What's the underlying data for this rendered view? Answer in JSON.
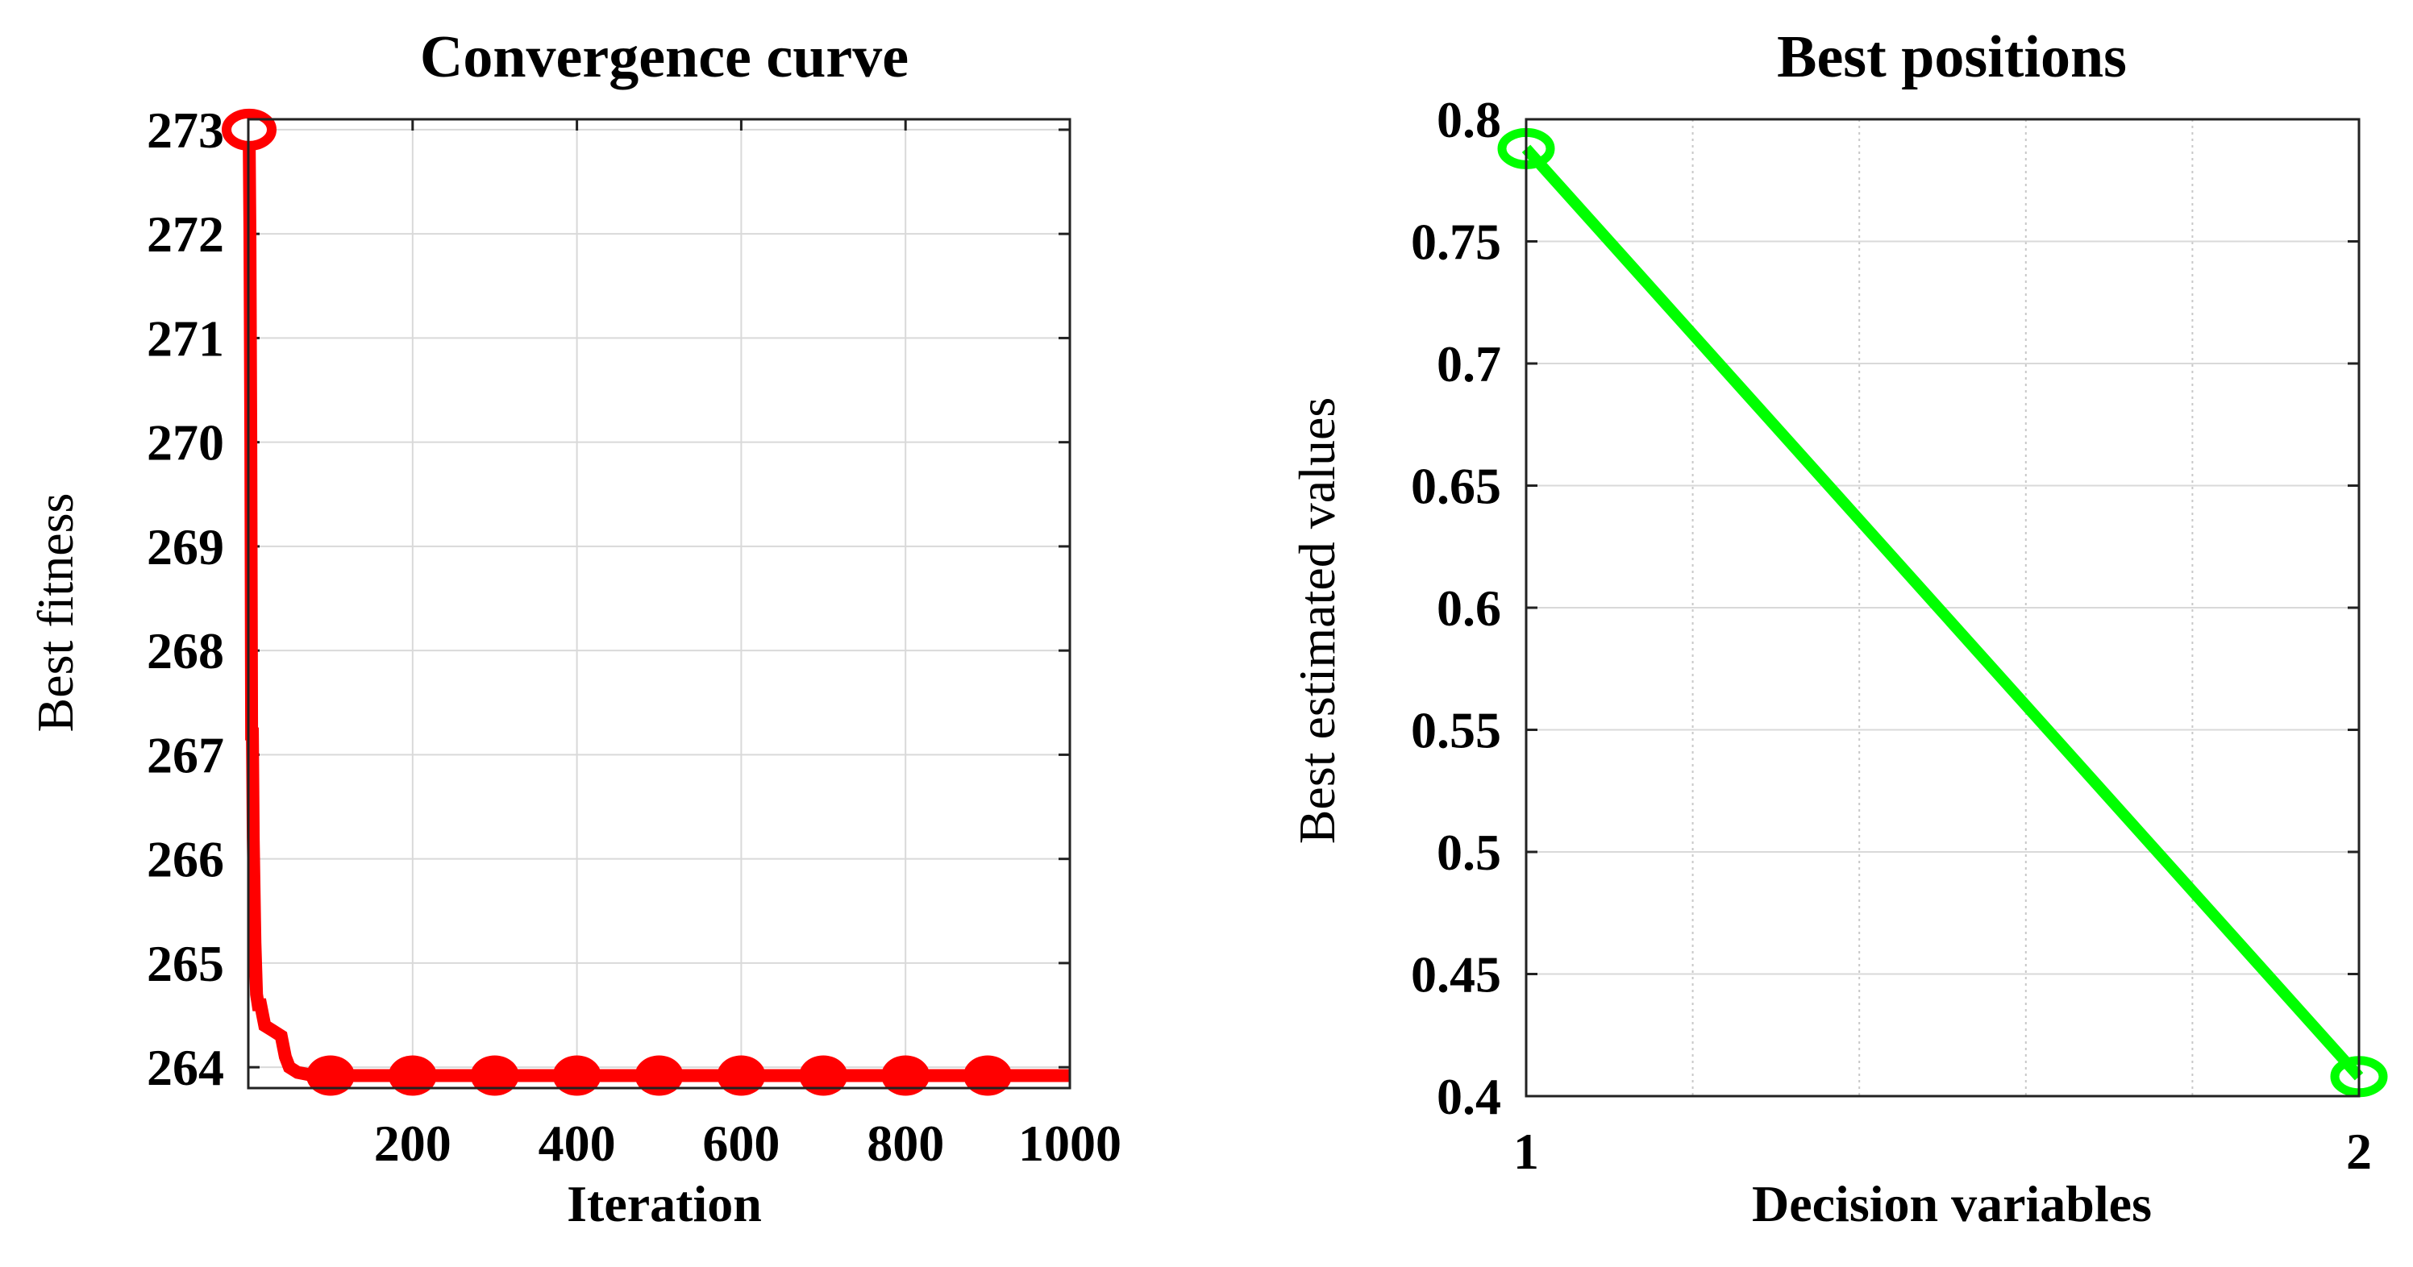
{
  "colors": {
    "convergence_series": "#ff0000",
    "positions_series": "#00ff00",
    "axis": "#222222",
    "grid": "#d9d9d9"
  },
  "chart_data": [
    {
      "type": "line",
      "title": "Convergence curve",
      "xlabel": "Iteration",
      "ylabel": "Best fitness",
      "xlim": [
        0,
        1000
      ],
      "ylim": [
        263.8,
        273.1
      ],
      "xticks": [
        200,
        400,
        600,
        800,
        1000
      ],
      "xtick_labels": [
        "200",
        "400",
        "600",
        "800",
        "1000"
      ],
      "yticks": [
        264,
        265,
        266,
        267,
        268,
        269,
        270,
        271,
        272,
        273
      ],
      "ytick_labels": [
        "264",
        "265",
        "266",
        "267",
        "268",
        "269",
        "270",
        "271",
        "272",
        "273"
      ],
      "grid": true,
      "series": [
        {
          "name": "Best fitness",
          "x": [
            1,
            2,
            3,
            4,
            5,
            6,
            8,
            10,
            12,
            15,
            20,
            30,
            40,
            45,
            50,
            60,
            80,
            100,
            200,
            300,
            400,
            500,
            600,
            700,
            800,
            900,
            1000
          ],
          "y": [
            273.0,
            272.0,
            270.0,
            267.2,
            267.2,
            266.2,
            265.2,
            264.7,
            264.6,
            264.6,
            264.4,
            264.35,
            264.3,
            264.1,
            264.0,
            263.95,
            263.92,
            263.92,
            263.92,
            263.92,
            263.92,
            263.92,
            263.92,
            263.92,
            263.92,
            263.92,
            263.92
          ]
        }
      ],
      "markers": {
        "first_point": {
          "x": 1,
          "y": 273.0,
          "style": "hollow-circle"
        },
        "filled_points_x": [
          100,
          200,
          300,
          400,
          500,
          600,
          700,
          800,
          900
        ],
        "filled_points_y": 263.92
      }
    },
    {
      "type": "line",
      "title": "Best positions",
      "xlabel": "Decision variables",
      "ylabel": "Best estimated values",
      "xlim": [
        1,
        2
      ],
      "ylim": [
        0.4,
        0.8
      ],
      "xticks": [
        1,
        2
      ],
      "xtick_labels": [
        "1",
        "2"
      ],
      "yticks": [
        0.4,
        0.45,
        0.5,
        0.55,
        0.6,
        0.65,
        0.7,
        0.75,
        0.8
      ],
      "ytick_labels": [
        "0.4",
        "0.45",
        "0.5",
        "0.55",
        "0.6",
        "0.65",
        "0.7",
        "0.75",
        "0.8"
      ],
      "minor_xgrid": [
        1.2,
        1.4,
        1.6,
        1.8
      ],
      "grid": true,
      "series": [
        {
          "name": "Best estimated values",
          "x": [
            1,
            2
          ],
          "y": [
            0.788,
            0.408
          ]
        }
      ]
    }
  ]
}
